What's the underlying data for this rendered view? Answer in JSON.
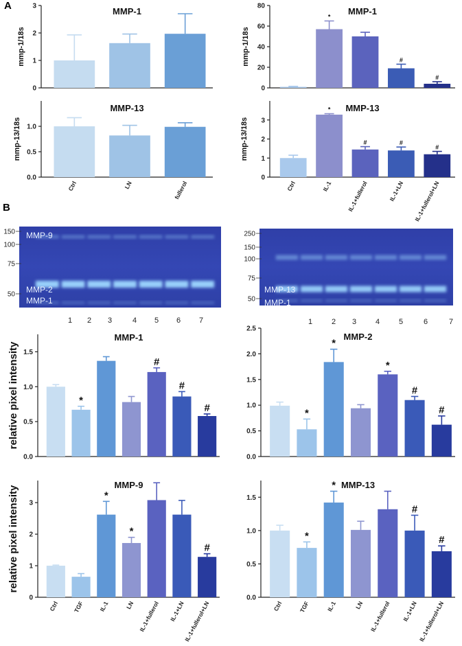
{
  "panel_labels": [
    "A",
    "B"
  ],
  "chart_data": [
    {
      "type": "bar",
      "title": "MMP-1",
      "ylabel": "mmp-1/18s",
      "categories": [
        null,
        null,
        null
      ],
      "values": [
        1.0,
        1.63,
        1.97
      ],
      "errors": [
        0.93,
        0.33,
        0.73
      ],
      "markers": [
        null,
        null,
        null
      ],
      "colors": [
        "#c5dcf0",
        "#9fc3e6",
        "#6a9fd6"
      ],
      "ylim": [
        0,
        3
      ],
      "yticks": [
        0,
        1,
        2,
        3
      ]
    },
    {
      "type": "bar",
      "title": "MMP-13",
      "ylabel": "mmp-13/18s",
      "categories": [
        "Ctrl",
        "LN",
        "fullerol"
      ],
      "values": [
        1.0,
        0.82,
        0.99
      ],
      "errors": [
        0.17,
        0.2,
        0.08
      ],
      "markers": [
        null,
        null,
        null
      ],
      "colors": [
        "#c5dcf0",
        "#9fc3e6",
        "#6a9fd6"
      ],
      "ylim": [
        0,
        1.5
      ],
      "yticks": [
        {
          "value": 0,
          "label": "0.0"
        },
        0.5,
        {
          "value": 1,
          "label": "1.0"
        }
      ]
    },
    {
      "type": "bar",
      "title": "MMP-1",
      "ylabel": "mmp-1/18s",
      "categories": [
        null,
        null,
        null,
        null,
        null
      ],
      "values": [
        1,
        57,
        50,
        19,
        4
      ],
      "errors": [
        0.5,
        8,
        4,
        4,
        2
      ],
      "markers": [
        null,
        "*",
        null,
        "#",
        "#"
      ],
      "colors": [
        "#a9c9ec",
        "#8c8fcc",
        "#5b63bd",
        "#3b5cb5",
        "#24308a"
      ],
      "ylim": [
        0,
        80
      ],
      "yticks": [
        0,
        20,
        40,
        60,
        80
      ]
    },
    {
      "type": "bar",
      "title": "MMP-13",
      "ylabel": "mmp-13/18s",
      "categories": [
        "Ctrl",
        "IL-1",
        "IL-1+fullerol",
        "IL-1+LN",
        "IL-1+fullerol+LN"
      ],
      "values": [
        1.0,
        3.28,
        1.45,
        1.4,
        1.2
      ],
      "errors": [
        0.15,
        0.05,
        0.15,
        0.18,
        0.15
      ],
      "markers": [
        null,
        "*",
        "#",
        "#",
        "#"
      ],
      "colors": [
        "#a9c9ec",
        "#8c8fcc",
        "#5b63bd",
        "#3b5cb5",
        "#24308a"
      ],
      "ylim": [
        0,
        4
      ],
      "yticks": [
        0,
        1,
        2,
        3
      ]
    },
    {
      "type": "bar",
      "title": "MMP-1",
      "ylabel": "relative pixel intensity",
      "categories": [
        null,
        null,
        null,
        null,
        null,
        null,
        null
      ],
      "values": [
        1.0,
        0.67,
        1.37,
        0.78,
        1.21,
        0.86,
        0.58
      ],
      "errors": [
        0.03,
        0.05,
        0.06,
        0.08,
        0.06,
        0.07,
        0.03
      ],
      "markers": [
        null,
        "*",
        null,
        null,
        "#",
        "#",
        "#"
      ],
      "colors": [
        "#c8def2",
        "#9cc4ea",
        "#5f97d6",
        "#8e95d0",
        "#5a62c0",
        "#3a5ab8",
        "#283b9e"
      ],
      "ylim": [
        0,
        1.75
      ],
      "yticks": [
        {
          "value": 0,
          "label": "0.0"
        },
        0.5,
        {
          "value": 1,
          "label": "1.0"
        },
        1.5
      ]
    },
    {
      "type": "bar",
      "title": "MMP-2",
      "categories": [
        null,
        null,
        null,
        null,
        null,
        null,
        null
      ],
      "values": [
        0.99,
        0.53,
        1.84,
        0.94,
        1.6,
        1.1,
        0.62
      ],
      "errors": [
        0.07,
        0.2,
        0.25,
        0.07,
        0.06,
        0.07,
        0.17
      ],
      "markers": [
        null,
        "*",
        "*",
        null,
        "*",
        "#",
        "#"
      ],
      "colors": [
        "#c8def2",
        "#9cc4ea",
        "#5f97d6",
        "#8e95d0",
        "#5a62c0",
        "#3a5ab8",
        "#283b9e"
      ],
      "ylim": [
        0,
        2.5
      ],
      "yticks": [
        {
          "value": 0,
          "label": "0.0"
        },
        0.5,
        {
          "value": 1,
          "label": "1.0"
        },
        1.5,
        {
          "value": 2,
          "label": "2.0"
        },
        2.5
      ]
    },
    {
      "type": "bar",
      "title": "MMP-9",
      "ylabel": "relative pixel intensity",
      "categories": [
        "Ctrl",
        "TGF",
        "IL-1",
        "LN",
        "IL-1+fullerol",
        "IL-1+LN",
        "IL-1+fullerol+LN"
      ],
      "values": [
        1.0,
        0.65,
        2.62,
        1.72,
        3.08,
        2.62,
        1.28
      ],
      "errors": [
        0.02,
        0.1,
        0.42,
        0.18,
        0.55,
        0.45,
        0.1
      ],
      "markers": [
        null,
        null,
        "*",
        "*",
        null,
        null,
        "#"
      ],
      "colors": [
        "#c8def2",
        "#9cc4ea",
        "#5f97d6",
        "#8e95d0",
        "#5a62c0",
        "#3a5ab8",
        "#283b9e"
      ],
      "ylim": [
        0,
        3.7
      ],
      "yticks": [
        0,
        1,
        2,
        3
      ]
    },
    {
      "type": "bar",
      "title": "MMP-13",
      "categories": [
        "Ctrl",
        "TGF",
        "IL-1",
        "LN",
        "IL-1+fullerol",
        "IL-1+LN",
        "IL-1+fullerol+LN"
      ],
      "values": [
        1.0,
        0.74,
        1.42,
        1.01,
        1.32,
        1.0,
        0.69
      ],
      "errors": [
        0.08,
        0.09,
        0.17,
        0.13,
        0.27,
        0.23,
        0.08
      ],
      "markers": [
        null,
        "*",
        "*",
        null,
        null,
        "#",
        "#"
      ],
      "colors": [
        "#c8def2",
        "#9cc4ea",
        "#5f97d6",
        "#8e95d0",
        "#5a62c0",
        "#3a5ab8",
        "#283b9e"
      ],
      "ylim": [
        0,
        1.75
      ],
      "yticks": [
        {
          "value": 0,
          "label": "0.0"
        },
        0.5,
        {
          "value": 1,
          "label": "1.0"
        },
        1.5
      ]
    }
  ],
  "gels": [
    {
      "ladder": [
        "150",
        "100",
        "75",
        "50"
      ],
      "bands": [
        "MMP-9",
        "MMP-2",
        "MMP-1"
      ],
      "lanes": [
        "1",
        "2",
        "3",
        "4",
        "5",
        "6",
        "7"
      ]
    },
    {
      "ladder": [
        "250",
        "150",
        "100",
        "75",
        "50"
      ],
      "bands": [
        "MMP-13",
        "MMP-1"
      ],
      "lanes": [
        "1",
        "2",
        "3",
        "4",
        "5",
        "6",
        "7"
      ]
    }
  ]
}
